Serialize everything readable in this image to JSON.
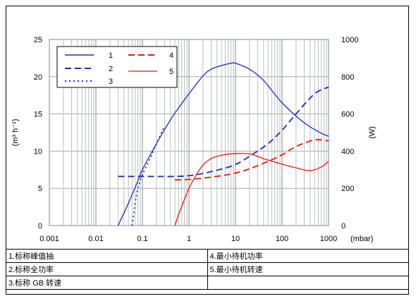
{
  "chart_data": {
    "type": "line",
    "x_scale": "log",
    "xlim": [
      0.001,
      1000
    ],
    "x_ticks": [
      "0.001",
      "0.01",
      "0.1",
      "1",
      "10",
      "100",
      "1000"
    ],
    "x_tick_values": [
      0.001,
      0.01,
      0.1,
      1,
      10,
      100,
      1000
    ],
    "xlabel": "(mbar)",
    "ylabel_left": "(m³ h⁻¹)",
    "ylabel_right": "(W)",
    "ylim_left": [
      0,
      25
    ],
    "ylim_right": [
      0,
      1000
    ],
    "y_ticks_left": [
      "0",
      "5",
      "10",
      "15",
      "20",
      "25"
    ],
    "y_ticks_right": [
      "0",
      "200",
      "400",
      "600",
      "800",
      "1000"
    ],
    "grid": "on",
    "legend_placement": "top-left",
    "series": [
      {
        "name": "1",
        "axis": "left",
        "style": "solid",
        "color": "#1f2fa8",
        "x": [
          0.03,
          0.05,
          0.08,
          0.1,
          0.2,
          0.4,
          0.7,
          1,
          2,
          3,
          5,
          8,
          10,
          20,
          40,
          100,
          300,
          700,
          1000
        ],
        "y": [
          0,
          3,
          6,
          7.5,
          11,
          14.2,
          16.4,
          17.7,
          20.1,
          21,
          21.5,
          21.8,
          21.8,
          21,
          19.5,
          16.5,
          13.8,
          12.4,
          12
        ]
      },
      {
        "name": "2",
        "axis": "left",
        "style": "dashed",
        "color": "#1f2fa8",
        "x": [
          0.03,
          0.1,
          0.5,
          1,
          2,
          5,
          10,
          20,
          50,
          100,
          200,
          500,
          1000
        ],
        "y": [
          6.6,
          6.6,
          6.6,
          6.7,
          7,
          7.6,
          8.2,
          9.3,
          11,
          12.8,
          15,
          17.7,
          18.6
        ]
      },
      {
        "name": "3",
        "axis": "left",
        "style": "dotted",
        "color": "#1f2fa8",
        "x": [
          0.06,
          0.065,
          0.07,
          0.08,
          0.1,
          0.15,
          0.2,
          0.3
        ],
        "y": [
          0,
          1.5,
          3,
          5,
          6.8,
          9.2,
          11,
          13.4
        ]
      },
      {
        "name": "4",
        "axis": "right",
        "style": "dashed",
        "color": "#e01818",
        "x": [
          0.5,
          1,
          2,
          5,
          10,
          20,
          50,
          100,
          200,
          500,
          1000
        ],
        "y": [
          245,
          248,
          255,
          268,
          282,
          305,
          345,
          380,
          425,
          460,
          455
        ]
      },
      {
        "name": "5",
        "axis": "right",
        "style": "solid",
        "color": "#e01818",
        "x": [
          0.5,
          0.6,
          0.8,
          1,
          1.5,
          2,
          3,
          5,
          10,
          20,
          40,
          100,
          200,
          400,
          700,
          1000
        ],
        "y": [
          0,
          60,
          140,
          200,
          280,
          325,
          360,
          378,
          387,
          385,
          360,
          330,
          310,
          295,
          315,
          345
        ]
      }
    ]
  },
  "table": {
    "rows": [
      [
        "1.标称峰值抽",
        "4.最小待机功率"
      ],
      [
        "2.标称全功率",
        "5.最小待机转速"
      ],
      [
        "3.标称 GB 转速",
        ""
      ]
    ]
  }
}
